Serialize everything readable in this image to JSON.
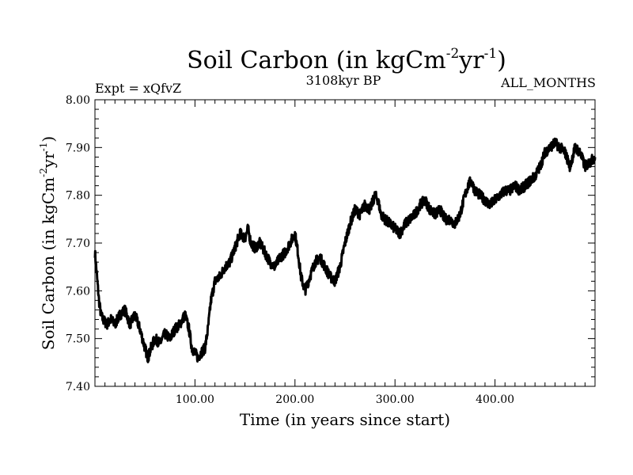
{
  "chart_data": {
    "type": "line",
    "title_main": "Soil Carbon (in kgCm",
    "title_sup1": "-2",
    "title_mid": "yr",
    "title_sup2": "-1",
    "title_end": ")",
    "subtitle_left": "Expt = xQfvZ",
    "subtitle_center": "3108kyr BP",
    "subtitle_right": "ALL_MONTHS",
    "xlabel": "Time (in years since start)",
    "ylabel_main": "Soil Carbon (in kgCm",
    "ylabel_sup1": "-2",
    "ylabel_mid": "yr",
    "ylabel_sup2": "-1",
    "ylabel_end": ")",
    "xlim": [
      0,
      500
    ],
    "ylim": [
      7.4,
      8.0
    ],
    "x_ticks": [
      100,
      200,
      300,
      400
    ],
    "x_tick_labels": [
      "100.00",
      "200.00",
      "300.00",
      "400.00"
    ],
    "y_ticks": [
      7.4,
      7.5,
      7.6,
      7.7,
      7.8,
      7.9,
      8.0
    ],
    "y_tick_labels": [
      "7.40",
      "7.50",
      "7.60",
      "7.70",
      "7.80",
      "7.90",
      "8.00"
    ],
    "line_color": "#000000",
    "series": [
      {
        "name": "Soil Carbon",
        "x": [
          0,
          2,
          4,
          6,
          8,
          12,
          16,
          20,
          25,
          30,
          35,
          40,
          45,
          50,
          53,
          56,
          60,
          65,
          70,
          75,
          80,
          85,
          90,
          94,
          97,
          100,
          103,
          106,
          110,
          113,
          116,
          120,
          125,
          130,
          135,
          140,
          145,
          150,
          153,
          156,
          160,
          165,
          170,
          175,
          180,
          185,
          190,
          195,
          200,
          203,
          206,
          210,
          215,
          220,
          225,
          230,
          235,
          240,
          245,
          250,
          255,
          260,
          265,
          270,
          275,
          280,
          283,
          286,
          290,
          295,
          300,
          305,
          310,
          315,
          320,
          325,
          330,
          335,
          340,
          345,
          350,
          355,
          360,
          365,
          370,
          373,
          376,
          380,
          385,
          390,
          395,
          400,
          405,
          410,
          415,
          420,
          425,
          430,
          435,
          440,
          445,
          450,
          455,
          460,
          465,
          470,
          475,
          480,
          485,
          490,
          495,
          500
        ],
        "y": [
          7.68,
          7.63,
          7.58,
          7.55,
          7.54,
          7.53,
          7.54,
          7.53,
          7.55,
          7.56,
          7.53,
          7.55,
          7.52,
          7.48,
          7.46,
          7.48,
          7.5,
          7.49,
          7.51,
          7.5,
          7.52,
          7.53,
          7.55,
          7.52,
          7.48,
          7.47,
          7.46,
          7.47,
          7.48,
          7.52,
          7.58,
          7.62,
          7.63,
          7.65,
          7.66,
          7.69,
          7.72,
          7.71,
          7.73,
          7.7,
          7.69,
          7.7,
          7.68,
          7.66,
          7.65,
          7.67,
          7.68,
          7.7,
          7.72,
          7.68,
          7.63,
          7.6,
          7.63,
          7.66,
          7.67,
          7.65,
          7.63,
          7.62,
          7.65,
          7.7,
          7.74,
          7.77,
          7.76,
          7.78,
          7.77,
          7.8,
          7.79,
          7.76,
          7.75,
          7.74,
          7.73,
          7.72,
          7.74,
          7.75,
          7.76,
          7.78,
          7.79,
          7.77,
          7.76,
          7.77,
          7.75,
          7.75,
          7.74,
          7.76,
          7.8,
          7.82,
          7.83,
          7.81,
          7.8,
          7.79,
          7.78,
          7.79,
          7.8,
          7.81,
          7.81,
          7.82,
          7.81,
          7.82,
          7.83,
          7.84,
          7.86,
          7.89,
          7.9,
          7.91,
          7.9,
          7.89,
          7.86,
          7.9,
          7.89,
          7.86,
          7.87,
          7.88
        ]
      }
    ]
  }
}
